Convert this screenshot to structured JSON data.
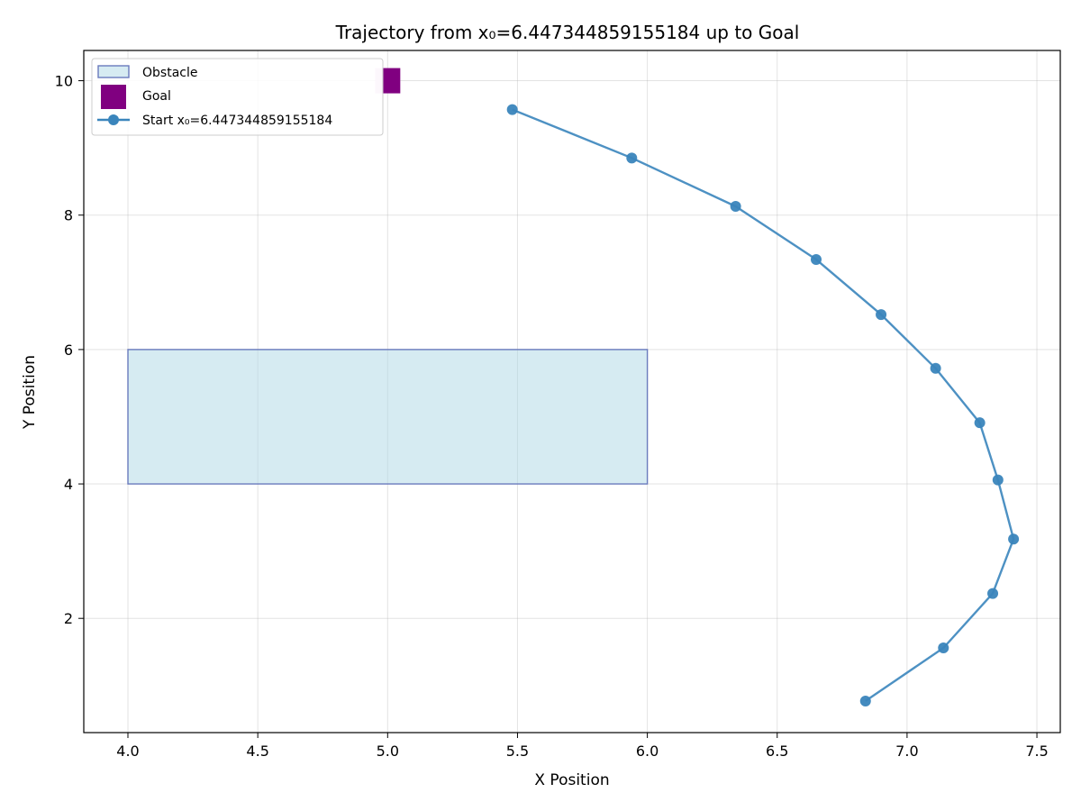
{
  "chart_data": {
    "type": "scatter",
    "title": "Trajectory from x₀=6.447344859155184 up to Goal",
    "xlabel": "X Position",
    "ylabel": "Y Position",
    "xlim": [
      3.83,
      7.59
    ],
    "ylim": [
      0.3,
      10.45
    ],
    "xticks": [
      4.0,
      4.5,
      5.0,
      5.5,
      6.0,
      6.5,
      7.0,
      7.5
    ],
    "xtick_labels": [
      "4.0",
      "4.5",
      "5.0",
      "5.5",
      "6.0",
      "6.5",
      "7.0",
      "7.5"
    ],
    "yticks": [
      2,
      4,
      6,
      8,
      10
    ],
    "ytick_labels": [
      "2",
      "4",
      "6",
      "8",
      "10"
    ],
    "grid": true,
    "legend_position": "top-left",
    "obstacle": {
      "name": "Obstacle",
      "x_range": [
        4.0,
        6.0
      ],
      "y_range": [
        4.0,
        6.0
      ],
      "fill": "#add8e6",
      "edge": "#6a7bbd"
    },
    "goal": {
      "name": "Goal",
      "x": 5.0,
      "y": 10.0,
      "color": "#800080"
    },
    "series": [
      {
        "name": "Start x₀=6.447344859155184",
        "color": "#3a85bc",
        "x": [
          6.84,
          7.14,
          7.33,
          7.41,
          7.35,
          7.28,
          7.11,
          6.9,
          6.65,
          6.34,
          5.94,
          5.48
        ],
        "y": [
          0.77,
          1.56,
          2.37,
          3.18,
          4.06,
          4.91,
          5.72,
          6.52,
          7.34,
          8.13,
          8.85,
          9.57
        ]
      }
    ]
  }
}
